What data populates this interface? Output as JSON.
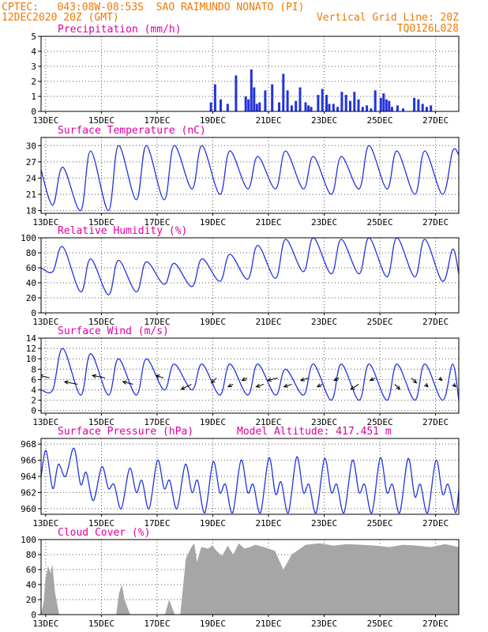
{
  "header": {
    "line1_left": "CPTEC:   043:08W-08:53S  SAO RAIMUNDO NONATO (PI)",
    "line2_left": "12DEC2020 20Z (GMT)",
    "line2_right": "Vertical Grid Line: 20Z",
    "line3_right": "TQ0126L028"
  },
  "colors": {
    "header": "#f07800",
    "panel_title": "#e000a0",
    "series": "#2233dd",
    "cloud": "#a6a6a6",
    "frame": "#000000",
    "grid": "#555555"
  },
  "chart_data": [
    {
      "type": "bar",
      "title": "Precipitation (mm/h)",
      "x_ticks": [
        "13DEC",
        "15DEC",
        "17DEC",
        "19DEC",
        "21DEC",
        "23DEC",
        "25DEC",
        "27DEC"
      ],
      "ylim": [
        0,
        5
      ],
      "y_ticks": [
        "0",
        "1",
        "2",
        "3",
        "4",
        "5"
      ],
      "grid": true,
      "series": [
        {
          "x_days": [
            6.1,
            6.25,
            6.45,
            6.7,
            7.0,
            7.35,
            7.45,
            7.55,
            7.65,
            7.75,
            7.85,
            8.05,
            8.3,
            8.55,
            8.7,
            8.85,
            9.0,
            9.15,
            9.3,
            9.5,
            9.6,
            9.7,
            9.95,
            10.1,
            10.25,
            10.35,
            10.5,
            10.65,
            10.8,
            10.95,
            11.1,
            11.25,
            11.4,
            11.55,
            11.7,
            11.85,
            12.0,
            12.2,
            12.3,
            12.4,
            12.5,
            12.6,
            12.8,
            13.0,
            13.4,
            13.55,
            13.7,
            13.85,
            14.0
          ],
          "values": [
            0.6,
            1.8,
            0.8,
            0.5,
            2.4,
            1.0,
            0.8,
            2.8,
            1.6,
            0.5,
            0.6,
            1.4,
            1.8,
            0.6,
            2.5,
            1.4,
            0.4,
            0.7,
            1.6,
            0.6,
            0.4,
            0.3,
            1.1,
            1.5,
            1.1,
            0.5,
            0.5,
            0.3,
            1.3,
            1.1,
            0.7,
            1.3,
            0.8,
            0.3,
            0.4,
            0.2,
            1.4,
            0.9,
            1.2,
            0.8,
            0.7,
            0.3,
            0.4,
            0.2,
            0.9,
            0.8,
            0.5,
            0.3,
            0.4
          ]
        }
      ]
    },
    {
      "type": "line",
      "title": "Surface Temperature (nC)",
      "x_ticks": [
        "13DEC",
        "15DEC",
        "17DEC",
        "19DEC",
        "21DEC",
        "23DEC",
        "25DEC",
        "27DEC"
      ],
      "ylim": [
        17.5,
        31.5
      ],
      "y_ticks": [
        "18",
        "21",
        "24",
        "27",
        "30"
      ],
      "grid": true,
      "series": [
        {
          "diurnal": {
            "days": [
              0,
              1,
              2,
              3,
              4,
              5,
              6,
              7,
              8,
              9,
              10,
              11,
              12,
              13,
              14,
              15
            ],
            "mins": [
              19,
              18,
              18,
              20,
              20,
              22,
              21,
              22,
              22,
              22,
              21,
              22,
              22,
              21,
              21,
              21
            ],
            "maxs": [
              26,
              29,
              30,
              30,
              30,
              30,
              29,
              28,
              29,
              28,
              28,
              30,
              29,
              29,
              29,
              28
            ],
            "start": 25.5,
            "end": 28.3
          }
        }
      ]
    },
    {
      "type": "line",
      "title": "Relative Humidity (%)",
      "x_ticks": [
        "13DEC",
        "15DEC",
        "17DEC",
        "19DEC",
        "21DEC",
        "23DEC",
        "25DEC",
        "27DEC"
      ],
      "ylim": [
        0,
        100
      ],
      "y_ticks": [
        "0",
        "20",
        "40",
        "60",
        "80",
        "100"
      ],
      "grid": true,
      "series": [
        {
          "diurnal": {
            "days": [
              0,
              1,
              2,
              3,
              4,
              5,
              6,
              7,
              8,
              9,
              10,
              11,
              12,
              13,
              14,
              15
            ],
            "mins": [
              55,
              28,
              24,
              28,
              38,
              35,
              42,
              45,
              46,
              55,
              52,
              52,
              48,
              48,
              42,
              45
            ],
            "maxs": [
              88,
              72,
              70,
              68,
              66,
              72,
              78,
              90,
              98,
              100,
              98,
              100,
              100,
              98,
              85,
              52
            ],
            "start": 60,
            "end": 52
          }
        }
      ]
    },
    {
      "type": "line",
      "title": "Surface Wind (m/s)",
      "x_ticks": [
        "13DEC",
        "15DEC",
        "17DEC",
        "19DEC",
        "21DEC",
        "23DEC",
        "25DEC",
        "27DEC"
      ],
      "ylim": [
        -0.5,
        14
      ],
      "y_ticks": [
        "0",
        "2",
        "4",
        "6",
        "8",
        "10",
        "12",
        "14"
      ],
      "grid": true,
      "series": [
        {
          "diurnal": {
            "days": [
              0,
              1,
              2,
              3,
              4,
              5,
              6,
              7,
              8,
              9,
              10,
              11,
              12,
              13,
              14,
              15
            ],
            "mins": [
              4,
              3,
              3,
              3,
              4,
              4,
              3,
              3,
              3,
              3,
              2,
              2,
              2,
              2,
              2,
              1
            ],
            "maxs": [
              12,
              11,
              10,
              10,
              9,
              9,
              9,
              9,
              8,
              9,
              9,
              9,
              9,
              9,
              9,
              9
            ],
            "start": 4,
            "end": 2
          }
        }
      ],
      "vectors": {
        "days": [
          0.3,
          1.3,
          2.3,
          3.3,
          4.4,
          5.4,
          6.3,
          6.9,
          7.4,
          8.0,
          8.5,
          9.0,
          9.6,
          10.1,
          10.7,
          11.4,
          12.0,
          12.7,
          13.3,
          13.8,
          14.3,
          14.8
        ],
        "u": [
          -4,
          -5,
          -5,
          -4,
          -3,
          -4,
          -2,
          -2,
          -2,
          -3,
          -4,
          -3,
          -3,
          -2,
          -2,
          -3,
          -2,
          2,
          2,
          1,
          1,
          1
        ],
        "v": [
          1,
          1,
          1,
          1,
          1,
          -2,
          -2,
          -1,
          -1,
          -1,
          -1,
          -1,
          -1,
          -1,
          -1,
          -2,
          -1,
          -2,
          -2,
          -1,
          -1,
          -1
        ]
      }
    },
    {
      "type": "line",
      "title": "Surface Pressure (hPa)",
      "annotation": "Model Altitude: 417.451 m",
      "x_ticks": [
        "13DEC",
        "15DEC",
        "17DEC",
        "19DEC",
        "21DEC",
        "23DEC",
        "25DEC",
        "27DEC"
      ],
      "ylim": [
        959.3,
        968.7
      ],
      "y_ticks": [
        "960",
        "962",
        "964",
        "966",
        "968"
      ],
      "grid": true,
      "series": [
        {
          "semidiurnal": {
            "days": [
              0,
              1,
              2,
              3,
              4,
              5,
              6,
              7,
              8,
              9,
              10,
              11,
              12,
              13,
              14,
              15
            ],
            "highs1": [
              967.2,
              967.5,
              965.2,
              965.0,
              966.0,
              965.5,
              965.8,
              966.0,
              966.3,
              966.4,
              966.2,
              966.0,
              966.3,
              966.2,
              966.0,
              965.5
            ],
            "lows1": [
              962.5,
              963.0,
              962.5,
              962.0,
              962.5,
              962.0,
              962.0,
              962.0,
              961.8,
              962.0,
              962.0,
              962.0,
              962.0,
              961.5,
              961.8,
              961.5
            ],
            "highs2": [
              965.5,
              964.5,
              963.0,
              963.5,
              963.5,
              963.5,
              963.0,
              963.0,
              963.3,
              963.0,
              963.0,
              963.0,
              963.0,
              963.0,
              963.0,
              963.0
            ],
            "lows2": [
              964.0,
              961.0,
              960.0,
              960.0,
              960.0,
              959.5,
              959.5,
              959.5,
              959.5,
              959.5,
              959.5,
              959.5,
              959.5,
              959.5,
              959.5,
              959.5
            ],
            "start": 964.0,
            "end": 962.3
          }
        }
      ]
    },
    {
      "type": "area",
      "title": "Cloud Cover (%)",
      "x_ticks": [
        "13DEC",
        "15DEC",
        "17DEC",
        "19DEC",
        "21DEC",
        "23DEC",
        "25DEC",
        "27DEC"
      ],
      "ylim": [
        0,
        100
      ],
      "y_ticks": [
        "0",
        "20",
        "40",
        "60",
        "80",
        "100"
      ],
      "grid": true,
      "series": [
        {
          "x_days": [
            0.0,
            0.1,
            0.15,
            0.25,
            0.35,
            0.4,
            0.5,
            0.55,
            0.65,
            0.75,
            0.85,
            1.0,
            1.2,
            1.4,
            1.55,
            1.65,
            1.75,
            1.9,
            2.0,
            2.4,
            2.6,
            2.7,
            2.8,
            2.9,
            3.0,
            3.2,
            3.35,
            3.5,
            3.7,
            3.85,
            4.0,
            4.2,
            4.45,
            4.6,
            4.8,
            5.0,
            5.2,
            5.4,
            5.5,
            5.6,
            5.75,
            6.0,
            6.15,
            6.3,
            6.5,
            6.7,
            6.9,
            7.1,
            7.3,
            7.5,
            7.7,
            8.0,
            8.4,
            8.7,
            9.0,
            9.5,
            10.0,
            10.5,
            11.0,
            11.5,
            12.0,
            12.5,
            13.0,
            13.5,
            14.0,
            14.5,
            15.0
          ],
          "values": [
            0,
            18,
            45,
            65,
            55,
            68,
            30,
            20,
            0,
            0,
            0,
            0,
            0,
            0,
            0,
            0,
            0,
            0,
            0,
            0,
            0,
            0,
            28,
            40,
            20,
            0,
            0,
            0,
            0,
            0,
            0,
            0,
            0,
            20,
            0,
            0,
            75,
            90,
            95,
            70,
            90,
            88,
            92,
            85,
            78,
            92,
            80,
            95,
            88,
            90,
            93,
            90,
            85,
            60,
            80,
            93,
            95,
            92,
            94,
            93,
            92,
            90,
            93,
            92,
            90,
            94,
            90
          ]
        }
      ]
    }
  ]
}
